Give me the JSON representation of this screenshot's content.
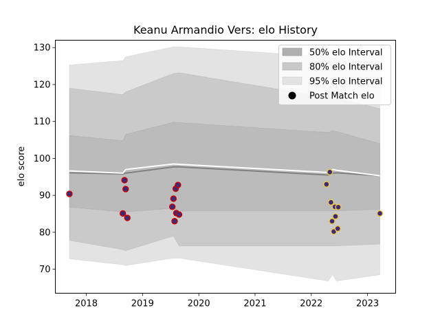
{
  "chart_data": {
    "type": "line",
    "title": "Keanu Armandio Vers: elo History",
    "xlabel": "",
    "ylabel": "elo score",
    "xlim": [
      2017.45,
      2023.5
    ],
    "ylim": [
      63.5,
      132.0
    ],
    "x_ticks": [
      2018,
      2019,
      2020,
      2021,
      2022,
      2023
    ],
    "x_tick_labels": [
      "2018",
      "2019",
      "2020",
      "2021",
      "2022",
      "2023"
    ],
    "y_ticks": [
      70,
      80,
      90,
      100,
      110,
      120,
      130
    ],
    "y_tick_labels": [
      "70",
      "80",
      "90",
      "100",
      "110",
      "120",
      "130"
    ],
    "grid": false,
    "legend_position": "top-right",
    "legend": [
      "50% elo Interval",
      "80% elo Interval",
      "95% elo Interval",
      "Post Match elo"
    ],
    "colors": {
      "band95": "#e3e3e3",
      "band80": "#cfcfcf",
      "band50": "#bfbfbf",
      "median": "#808080",
      "mean": "#ffffff"
    },
    "bands": {
      "x": [
        2017.7,
        2018.65,
        2018.7,
        2019.55,
        2019.65,
        2022.3,
        2022.38,
        2022.45,
        2023.22
      ],
      "p95_upper": [
        125.3,
        126.5,
        127.5,
        130.2,
        130.2,
        127.5,
        127.2,
        127.2,
        126.0
      ],
      "p80_upper": [
        119.0,
        117.3,
        118.0,
        123.0,
        123.2,
        116.5,
        116.5,
        116.3,
        113.5
      ],
      "p50_upper": [
        106.2,
        104.8,
        106.5,
        109.8,
        109.7,
        107.0,
        107.5,
        107.3,
        104.0
      ],
      "median": [
        96.1,
        95.8,
        96.0,
        97.7,
        97.7,
        95.5,
        96.0,
        96.1,
        95.3
      ],
      "mean": [
        96.6,
        96.0,
        97.0,
        98.5,
        98.4,
        96.2,
        97.0,
        96.8,
        95.3
      ],
      "p50_lower": [
        86.8,
        85.5,
        85.5,
        86.5,
        85.8,
        85.8,
        85.8,
        85.8,
        86.2
      ],
      "p80_lower": [
        77.8,
        75.3,
        75.0,
        79.0,
        76.3,
        76.3,
        76.3,
        76.3,
        76.8
      ],
      "p95_lower": [
        72.8,
        71.2,
        71.0,
        73.0,
        73.0,
        66.8,
        68.5,
        66.8,
        68.5
      ]
    },
    "series": [
      {
        "name": "Post Match elo",
        "points": [
          {
            "x": 2017.7,
            "y": 90.4,
            "edge": "#cc0000"
          },
          {
            "x": 2018.65,
            "y": 85.1,
            "edge": "#cc0000"
          },
          {
            "x": 2018.68,
            "y": 94.1,
            "edge": "#cc0000"
          },
          {
            "x": 2018.7,
            "y": 91.7,
            "edge": "#cc0000"
          },
          {
            "x": 2018.73,
            "y": 83.9,
            "edge": "#cc0000"
          },
          {
            "x": 2019.53,
            "y": 86.9,
            "edge": "#cc0000"
          },
          {
            "x": 2019.55,
            "y": 89.1,
            "edge": "#cc0000"
          },
          {
            "x": 2019.57,
            "y": 83.0,
            "edge": "#cc0000"
          },
          {
            "x": 2019.59,
            "y": 91.8,
            "edge": "#cc0000"
          },
          {
            "x": 2019.6,
            "y": 85.2,
            "edge": "#cc0000"
          },
          {
            "x": 2019.63,
            "y": 92.8,
            "edge": "#cc0000"
          },
          {
            "x": 2019.65,
            "y": 84.8,
            "edge": "#cc0000"
          },
          {
            "x": 2022.27,
            "y": 93.0,
            "edge": "#e8c84a"
          },
          {
            "x": 2022.33,
            "y": 96.3,
            "edge": "#e8c84a"
          },
          {
            "x": 2022.35,
            "y": 88.1,
            "edge": "#e8c84a"
          },
          {
            "x": 2022.37,
            "y": 83.0,
            "edge": "#e8c84a"
          },
          {
            "x": 2022.4,
            "y": 80.2,
            "edge": "#e8c84a"
          },
          {
            "x": 2022.42,
            "y": 86.9,
            "edge": "#e8c84a"
          },
          {
            "x": 2022.43,
            "y": 84.3,
            "edge": "#e8c84a"
          },
          {
            "x": 2022.47,
            "y": 81.0,
            "edge": "#e8c84a"
          },
          {
            "x": 2022.48,
            "y": 86.8,
            "edge": "#e8c84a"
          },
          {
            "x": 2023.22,
            "y": 85.1,
            "edge": "#e8c84a"
          }
        ]
      }
    ]
  }
}
